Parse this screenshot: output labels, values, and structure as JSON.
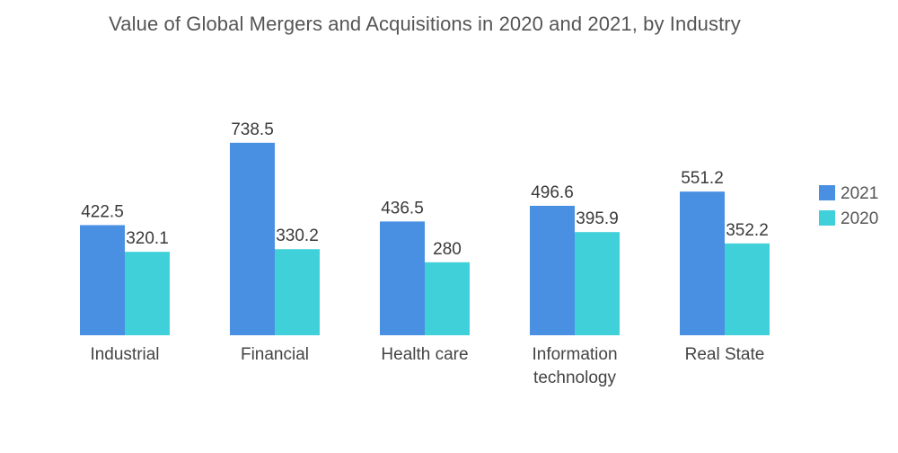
{
  "chart_data": {
    "type": "bar",
    "title": "Value of Global Mergers and Acquisitions in 2020 and 2021, by Industry",
    "xlabel": "",
    "ylabel": "",
    "categories": [
      [
        "Industrial"
      ],
      [
        "Financial"
      ],
      [
        "Health care"
      ],
      [
        "Information",
        "technology"
      ],
      [
        "Real State"
      ]
    ],
    "series": [
      {
        "name": "2021",
        "color": "#4a90e2",
        "values": [
          422.5,
          738.5,
          436.5,
          496.6,
          551.2
        ],
        "labels": [
          "422.5",
          "738.5",
          "436.5",
          "496.6",
          "551.2"
        ]
      },
      {
        "name": "2020",
        "color": "#40d0da",
        "values": [
          320.1,
          330.2,
          280,
          395.9,
          352.2
        ],
        "labels": [
          "320.1",
          "330.2",
          "280",
          "395.9",
          "352.2"
        ]
      }
    ],
    "ylim": [
      0,
      800
    ],
    "grid": false,
    "legend": "right"
  }
}
